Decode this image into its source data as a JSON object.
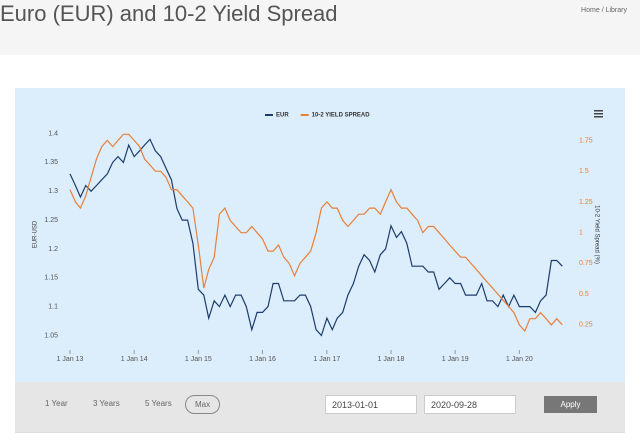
{
  "header": {
    "title": "Euro (EUR) and 10-2 Yield Spread",
    "breadcrumb": [
      "Home",
      "Library"
    ],
    "separator": "/"
  },
  "chart_data": {
    "type": "line",
    "x": [
      "2013-01-01",
      "2013-02-01",
      "2013-03-01",
      "2013-04-01",
      "2013-05-01",
      "2013-06-01",
      "2013-07-01",
      "2013-08-01",
      "2013-09-01",
      "2013-10-01",
      "2013-11-01",
      "2013-12-01",
      "2014-01-01",
      "2014-02-01",
      "2014-03-01",
      "2014-04-01",
      "2014-05-01",
      "2014-06-01",
      "2014-07-01",
      "2014-08-01",
      "2014-09-01",
      "2014-10-01",
      "2014-11-01",
      "2014-12-01",
      "2015-01-01",
      "2015-02-01",
      "2015-03-01",
      "2015-04-01",
      "2015-05-01",
      "2015-06-01",
      "2015-07-01",
      "2015-08-01",
      "2015-09-01",
      "2015-10-01",
      "2015-11-01",
      "2015-12-01",
      "2016-01-01",
      "2016-02-01",
      "2016-03-01",
      "2016-04-01",
      "2016-05-01",
      "2016-06-01",
      "2016-07-01",
      "2016-08-01",
      "2016-09-01",
      "2016-10-01",
      "2016-11-01",
      "2016-12-01",
      "2017-01-01",
      "2017-02-01",
      "2017-03-01",
      "2017-04-01",
      "2017-05-01",
      "2017-06-01",
      "2017-07-01",
      "2017-08-01",
      "2017-09-01",
      "2017-10-01",
      "2017-11-01",
      "2017-12-01",
      "2018-01-01",
      "2018-02-01",
      "2018-03-01",
      "2018-04-01",
      "2018-05-01",
      "2018-06-01",
      "2018-07-01",
      "2018-08-01",
      "2018-09-01",
      "2018-10-01",
      "2018-11-01",
      "2018-12-01",
      "2019-01-01",
      "2019-02-01",
      "2019-03-01",
      "2019-04-01",
      "2019-05-01",
      "2019-06-01",
      "2019-07-01",
      "2019-08-01",
      "2019-09-01",
      "2019-10-01",
      "2019-11-01",
      "2019-12-01",
      "2020-01-01",
      "2020-02-01",
      "2020-03-01",
      "2020-04-01",
      "2020-05-01",
      "2020-06-01",
      "2020-07-01",
      "2020-08-01",
      "2020-09-01"
    ],
    "series": [
      {
        "name": "EUR",
        "color": "#1c3d6b",
        "values": [
          1.33,
          1.31,
          1.29,
          1.31,
          1.3,
          1.31,
          1.32,
          1.33,
          1.35,
          1.36,
          1.35,
          1.38,
          1.36,
          1.37,
          1.38,
          1.39,
          1.37,
          1.36,
          1.34,
          1.32,
          1.27,
          1.25,
          1.25,
          1.21,
          1.13,
          1.12,
          1.08,
          1.11,
          1.1,
          1.12,
          1.1,
          1.12,
          1.12,
          1.1,
          1.06,
          1.09,
          1.09,
          1.1,
          1.14,
          1.14,
          1.11,
          1.11,
          1.11,
          1.12,
          1.12,
          1.1,
          1.06,
          1.05,
          1.08,
          1.06,
          1.08,
          1.09,
          1.12,
          1.14,
          1.17,
          1.19,
          1.18,
          1.16,
          1.19,
          1.2,
          1.24,
          1.22,
          1.23,
          1.21,
          1.17,
          1.17,
          1.17,
          1.16,
          1.16,
          1.13,
          1.14,
          1.15,
          1.14,
          1.14,
          1.12,
          1.12,
          1.12,
          1.14,
          1.11,
          1.11,
          1.1,
          1.12,
          1.1,
          1.12,
          1.1,
          1.1,
          1.1,
          1.09,
          1.11,
          1.12,
          1.18,
          1.18,
          1.17
        ]
      },
      {
        "name": "10-2 YIELD SPREAD",
        "color": "#e8803a",
        "axis": "y2",
        "values": [
          1.35,
          1.25,
          1.2,
          1.3,
          1.45,
          1.6,
          1.7,
          1.75,
          1.7,
          1.75,
          1.8,
          1.8,
          1.75,
          1.7,
          1.6,
          1.55,
          1.5,
          1.5,
          1.45,
          1.35,
          1.35,
          1.3,
          1.25,
          1.2,
          0.9,
          0.55,
          0.7,
          0.8,
          1.15,
          1.2,
          1.1,
          1.05,
          1.0,
          1.0,
          1.05,
          1.0,
          0.95,
          0.85,
          0.85,
          0.9,
          0.8,
          0.75,
          0.65,
          0.75,
          0.8,
          0.85,
          1.0,
          1.2,
          1.25,
          1.2,
          1.2,
          1.1,
          1.05,
          1.1,
          1.15,
          1.15,
          1.2,
          1.2,
          1.15,
          1.25,
          1.35,
          1.25,
          1.2,
          1.2,
          1.15,
          1.1,
          1.0,
          1.05,
          1.05,
          1.0,
          0.95,
          0.9,
          0.85,
          0.8,
          0.8,
          0.75,
          0.7,
          0.65,
          0.6,
          0.55,
          0.5,
          0.45,
          0.4,
          0.35,
          0.25,
          0.2,
          0.3,
          0.3,
          0.35,
          0.3,
          0.25,
          0.3,
          0.25
        ]
      }
    ],
    "xlim": [
      "2013-01-01",
      "2020-09-28"
    ],
    "xticks": [
      {
        "value": "2013-01-01",
        "label": "1 Jan 13"
      },
      {
        "value": "2014-01-01",
        "label": "1 Jan 14"
      },
      {
        "value": "2015-01-01",
        "label": "1 Jan 15"
      },
      {
        "value": "2016-01-01",
        "label": "1 Jan 16"
      },
      {
        "value": "2017-01-01",
        "label": "1 Jan 17"
      },
      {
        "value": "2018-01-01",
        "label": "1 Jan 18"
      },
      {
        "value": "2019-01-01",
        "label": "1 Jan 19"
      },
      {
        "value": "2020-01-01",
        "label": "1 Jan 20"
      }
    ],
    "ylim": [
      1.03,
      1.42
    ],
    "yticks": [
      1.05,
      1.1,
      1.15,
      1.2,
      1.25,
      1.3,
      1.35,
      1.4
    ],
    "y2lim": [
      0.07,
      1.9
    ],
    "y2ticks": [
      0.25,
      0.5,
      0.75,
      1,
      1.25,
      1.5,
      1.75
    ],
    "ylabel": "EUR-USD",
    "y2label": "10-2 Yield Spread (%)",
    "legend": "top"
  },
  "controls": {
    "ranges": [
      "1 Year",
      "3 Years",
      "5 Years",
      "Max"
    ],
    "selected_range": "Max",
    "start_date": "2013-01-01",
    "end_date": "2020-09-28",
    "apply": "Apply"
  }
}
